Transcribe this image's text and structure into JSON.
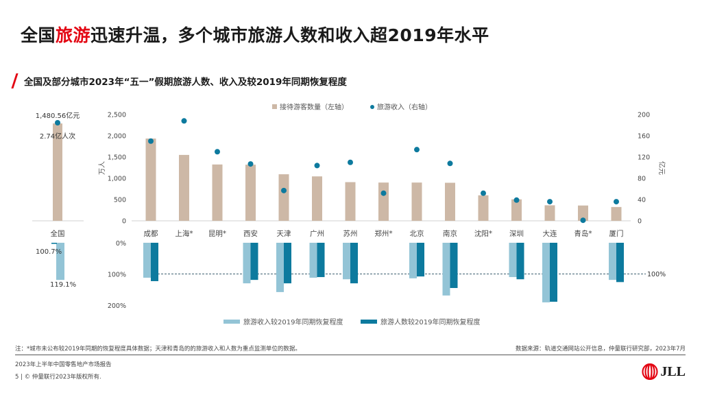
{
  "page": {
    "title_prefix": "全国",
    "title_highlight": "旅游",
    "title_suffix": "迅速升温，多个城市旅游人数和收入超2019年水平",
    "subtitle": "全国及部分城市2023年“五一”假期旅游人数、收入及较2019年同期恢复程度",
    "note": "注：*城市未公布较2019年同期的恢复程度具体数据；天津和青岛的的旅游收入和人数为重点监测单位的数据。",
    "source": "数据来源：轨道交通网站公开信息，仲量联行研究部，2023年7月",
    "report_name": "2023年上半年中国零售地产市场报告",
    "copyright": "5 | © 仲量联行2023年版权所有.",
    "logo_text": "JLL",
    "colors": {
      "accent_red": "#e30613",
      "visitors_bar": "#cdb8a6",
      "revenue_dot": "#0d7a9e",
      "revenue_recovery": "#93c4d6",
      "visitors_recovery": "#0d7a9e"
    }
  },
  "chart_data": [
    {
      "type": "bar",
      "title": "全国",
      "categories": [
        "全国"
      ],
      "series": [
        {
          "name": "接待游客数量",
          "values": [
            27400
          ],
          "unit": "万人"
        },
        {
          "name": "旅游收入",
          "values": [
            1480.56
          ],
          "unit": "亿元"
        }
      ],
      "annotations": [
        "1,480.56亿元",
        "2.74亿人次"
      ]
    },
    {
      "type": "bar",
      "title": "城市接待游客数量与旅游收入",
      "legend": [
        "接待游客数量（左轴）",
        "旅游收入（右轴）"
      ],
      "legend_position": "top",
      "categories": [
        "成都",
        "上海*",
        "昆明*",
        "西安",
        "天津",
        "广州",
        "苏州",
        "郑州*",
        "北京",
        "南京",
        "沈阳*",
        "深圳",
        "大连",
        "青岛*",
        "厦门"
      ],
      "series": [
        {
          "name": "接待游客数量（左轴）",
          "axis": "left",
          "mark": "bar",
          "values": [
            1935,
            1550,
            1325,
            1320,
            1095,
            1045,
            910,
            900,
            900,
            895,
            600,
            505,
            365,
            360,
            325
          ]
        },
        {
          "name": "旅游收入（右轴）",
          "axis": "right",
          "mark": "dot",
          "values": [
            150,
            188,
            130,
            107,
            57,
            104,
            110,
            52,
            134,
            108,
            52,
            39,
            36,
            1,
            36
          ]
        }
      ],
      "ylabel": "万人",
      "ylabel_right": "亿元",
      "ylim": [
        0,
        2500
      ],
      "ylim_right": [
        0,
        200
      ],
      "yticks": [
        "0",
        "500",
        "1,000",
        "1,500",
        "2,000",
        "2,500"
      ],
      "yticks_right": [
        "0",
        "40",
        "80",
        "120",
        "160",
        "200"
      ],
      "grid": false
    },
    {
      "type": "bar",
      "title": "较2019年同期恢复程度",
      "legend": [
        "旅游收入较2019年同期恢复程度",
        "旅游人数较2019年同期恢复程度"
      ],
      "legend_position": "bottom",
      "categories": [
        "全国",
        "成都",
        "上海*",
        "昆明*",
        "西安",
        "天津",
        "广州",
        "苏州",
        "郑州*",
        "北京",
        "南京",
        "沈阳*",
        "深圳",
        "大连",
        "青岛*",
        "厦门"
      ],
      "series": [
        {
          "name": "旅游收入较2019年同期恢复程度",
          "values": [
            119.1,
            112,
            null,
            null,
            130,
            158,
            112,
            117,
            null,
            114,
            169,
            null,
            110,
            191,
            null,
            119
          ]
        },
        {
          "name": "旅游人数较2019年同期恢复程度",
          "values": [
            100.7,
            123,
            null,
            null,
            119,
            130,
            110,
            130,
            null,
            108,
            145,
            null,
            117,
            189,
            null,
            126
          ]
        }
      ],
      "data_labels": {
        "national_revenue": "119.1%",
        "national_visitors": "100.7%"
      },
      "yticks": [
        "0%",
        "100%",
        "200%"
      ],
      "ylim": [
        0,
        200
      ],
      "reference_line": {
        "value": 100,
        "label": "100%"
      },
      "inverted": true
    }
  ]
}
